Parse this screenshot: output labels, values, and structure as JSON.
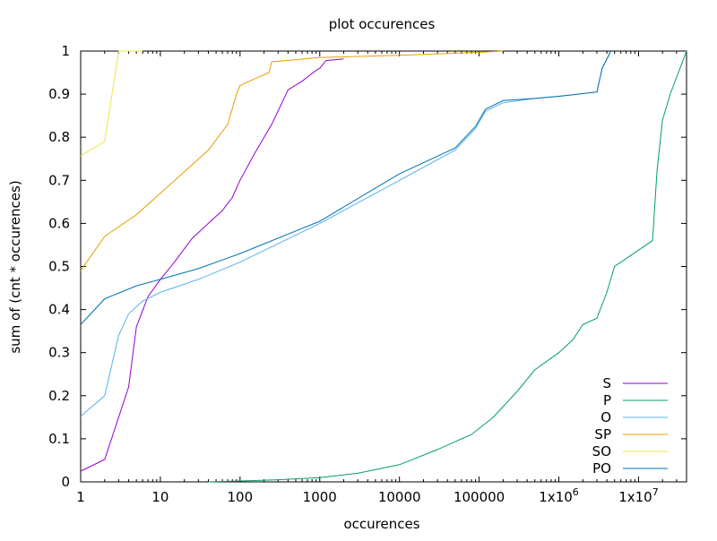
{
  "chart_data": {
    "type": "line",
    "title": "plot occurences",
    "xlabel": "occurences",
    "ylabel": "sum of (cnt * occurences)",
    "xscale": "log",
    "xlim": [
      1,
      40000000
    ],
    "ylim": [
      0,
      1
    ],
    "grid": false,
    "legend": "bottom-right",
    "x_ticks": [
      {
        "value": 1,
        "label": "1"
      },
      {
        "value": 10,
        "label": "10"
      },
      {
        "value": 100,
        "label": "100"
      },
      {
        "value": 1000,
        "label": "1000"
      },
      {
        "value": 10000,
        "label": "10000"
      },
      {
        "value": 100000,
        "label": "100000"
      },
      {
        "value": 1000000,
        "label": "1x10",
        "exp": "6"
      },
      {
        "value": 10000000,
        "label": "1x10",
        "exp": "7"
      }
    ],
    "y_ticks": [
      {
        "value": 0,
        "label": "0"
      },
      {
        "value": 0.1,
        "label": "0.1"
      },
      {
        "value": 0.2,
        "label": "0.2"
      },
      {
        "value": 0.3,
        "label": "0.3"
      },
      {
        "value": 0.4,
        "label": "0.4"
      },
      {
        "value": 0.5,
        "label": "0.5"
      },
      {
        "value": 0.6,
        "label": "0.6"
      },
      {
        "value": 0.7,
        "label": "0.7"
      },
      {
        "value": 0.8,
        "label": "0.8"
      },
      {
        "value": 0.9,
        "label": "0.9"
      },
      {
        "value": 1,
        "label": "1"
      }
    ],
    "series": [
      {
        "name": "S",
        "color": "#9400d3",
        "points": [
          [
            1,
            0.025
          ],
          [
            2,
            0.052
          ],
          [
            4,
            0.22
          ],
          [
            5,
            0.36
          ],
          [
            7,
            0.43
          ],
          [
            10,
            0.47
          ],
          [
            15,
            0.51
          ],
          [
            25,
            0.565
          ],
          [
            40,
            0.6
          ],
          [
            60,
            0.63
          ],
          [
            80,
            0.66
          ],
          [
            100,
            0.7
          ],
          [
            150,
            0.76
          ],
          [
            250,
            0.83
          ],
          [
            400,
            0.91
          ],
          [
            600,
            0.93
          ],
          [
            900,
            0.955
          ],
          [
            1000,
            0.96
          ],
          [
            1200,
            0.978
          ],
          [
            2000,
            0.982
          ]
        ]
      },
      {
        "name": "P",
        "color": "#009e73",
        "points": [
          [
            40,
            0.0
          ],
          [
            100,
            0.002
          ],
          [
            300,
            0.005
          ],
          [
            1000,
            0.01
          ],
          [
            3000,
            0.02
          ],
          [
            10000,
            0.04
          ],
          [
            30000,
            0.075
          ],
          [
            80000,
            0.11
          ],
          [
            150000,
            0.15
          ],
          [
            300000,
            0.21
          ],
          [
            500000,
            0.26
          ],
          [
            1000000,
            0.3
          ],
          [
            1500000,
            0.33
          ],
          [
            2000000,
            0.365
          ],
          [
            3000000,
            0.38
          ],
          [
            4000000,
            0.44
          ],
          [
            5000000,
            0.5
          ],
          [
            15000000,
            0.56
          ],
          [
            17000000,
            0.72
          ],
          [
            20000000,
            0.84
          ],
          [
            25000000,
            0.9
          ],
          [
            40000000,
            1.0
          ]
        ]
      },
      {
        "name": "O",
        "color": "#56b4e9",
        "points": [
          [
            1,
            0.152
          ],
          [
            2,
            0.2
          ],
          [
            3,
            0.34
          ],
          [
            4,
            0.39
          ],
          [
            6,
            0.42
          ],
          [
            10,
            0.44
          ],
          [
            30,
            0.47
          ],
          [
            100,
            0.51
          ],
          [
            1000,
            0.6
          ],
          [
            10000,
            0.7
          ],
          [
            50000,
            0.77
          ],
          [
            90000,
            0.82
          ],
          [
            120000,
            0.86
          ],
          [
            200000,
            0.88
          ],
          [
            500000,
            0.89
          ],
          [
            1000000,
            0.895
          ],
          [
            3000000,
            0.905
          ],
          [
            3500000,
            0.96
          ],
          [
            4500000,
            1.0
          ]
        ]
      },
      {
        "name": "SP",
        "color": "#e69f00",
        "points": [
          [
            1,
            0.49
          ],
          [
            2,
            0.57
          ],
          [
            5,
            0.62
          ],
          [
            10,
            0.67
          ],
          [
            20,
            0.72
          ],
          [
            40,
            0.77
          ],
          [
            70,
            0.83
          ],
          [
            90,
            0.9
          ],
          [
            100,
            0.92
          ],
          [
            150,
            0.935
          ],
          [
            230,
            0.95
          ],
          [
            250,
            0.975
          ],
          [
            500,
            0.98
          ],
          [
            1000,
            0.985
          ],
          [
            10000,
            0.99
          ],
          [
            100000,
            0.997
          ],
          [
            200000,
            1.0
          ]
        ]
      },
      {
        "name": "SO",
        "color": "#f0e442",
        "points": [
          [
            1,
            0.757
          ],
          [
            2,
            0.79
          ],
          [
            3,
            1.0
          ],
          [
            6,
            1.0
          ]
        ]
      },
      {
        "name": "PO",
        "color": "#0072b2",
        "points": [
          [
            1,
            0.365
          ],
          [
            2,
            0.425
          ],
          [
            5,
            0.455
          ],
          [
            10,
            0.47
          ],
          [
            30,
            0.495
          ],
          [
            100,
            0.53
          ],
          [
            1000,
            0.605
          ],
          [
            10000,
            0.715
          ],
          [
            50000,
            0.775
          ],
          [
            90000,
            0.825
          ],
          [
            120000,
            0.865
          ],
          [
            200000,
            0.885
          ],
          [
            500000,
            0.89
          ],
          [
            1000000,
            0.895
          ],
          [
            3000000,
            0.905
          ],
          [
            3500000,
            0.96
          ],
          [
            4500000,
            1.0
          ]
        ]
      }
    ]
  }
}
